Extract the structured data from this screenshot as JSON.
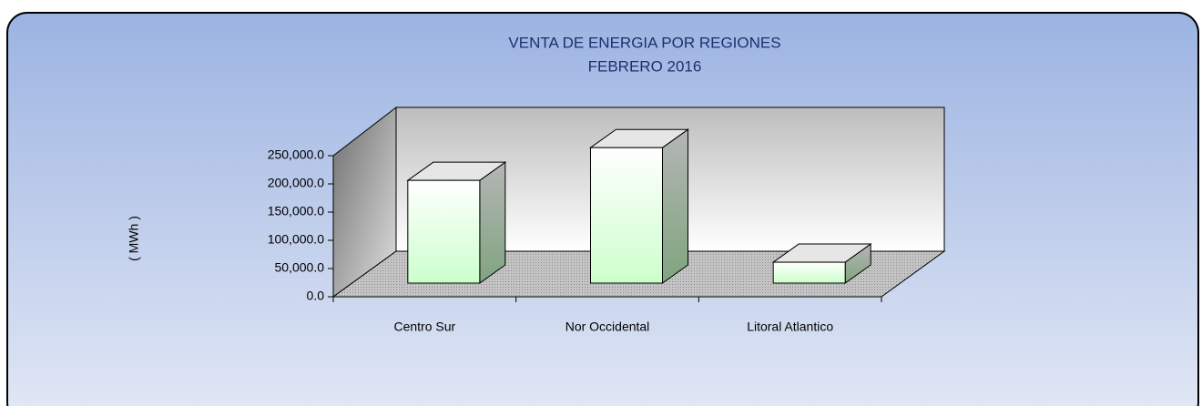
{
  "chart_data": {
    "type": "bar3d",
    "title": "VENTA DE ENERGIA POR REGIONES",
    "subtitle": "FEBRERO  2016",
    "y_label": "( MWh )",
    "categories": [
      "Centro Sur",
      "Nor Occidental",
      "Litoral  Atlantico"
    ],
    "values": [
      182000,
      240000,
      37000
    ],
    "color": "#ccffcc",
    "ylim": [
      0,
      250000
    ],
    "yticks": [
      {
        "value": 0,
        "label": "0.0"
      },
      {
        "value": 50000,
        "label": "50,000.0"
      },
      {
        "value": 100000,
        "label": "100,000.0"
      },
      {
        "value": 150000,
        "label": "150,000.0"
      },
      {
        "value": 200000,
        "label": "200,000.0"
      },
      {
        "value": 250000,
        "label": "250,000.0"
      }
    ]
  }
}
